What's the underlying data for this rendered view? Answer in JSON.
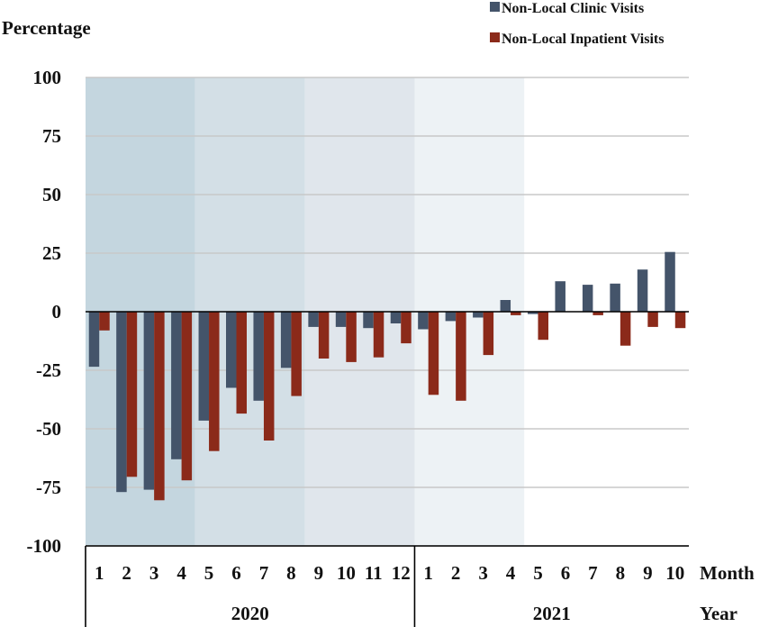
{
  "chart_data": {
    "type": "bar",
    "ylabel": "Percentage",
    "ylim": [
      -100,
      100
    ],
    "yticks": [
      "100",
      "75",
      "50",
      "25",
      "0",
      "-25",
      "-50",
      "-75",
      "-100"
    ],
    "x_axis_label": "Month",
    "group_axis_label": "Year",
    "categories": [
      "1",
      "2",
      "3",
      "4",
      "5",
      "6",
      "7",
      "8",
      "9",
      "10",
      "11",
      "12",
      "1",
      "2",
      "3",
      "4",
      "5",
      "6",
      "7",
      "8",
      "9",
      "10"
    ],
    "years": [
      {
        "label": "2020",
        "months": 12
      },
      {
        "label": "2021",
        "months": 10
      }
    ],
    "series": [
      {
        "name": "Non-Local Clinic Visits",
        "color": "#44546a",
        "values": [
          -23.5,
          -77,
          -76,
          -63,
          -46.5,
          -32.5,
          -38,
          -24,
          -6.5,
          -6.5,
          -7,
          -5,
          -7.5,
          -4,
          -2.5,
          5,
          -1,
          13,
          11.5,
          12,
          18,
          25.5
        ]
      },
      {
        "name": "Non-Local Inpatient Visits",
        "color": "#8b2a1a",
        "values": [
          -8,
          -70.5,
          -80.5,
          -72,
          -59.5,
          -43.5,
          -55,
          -36,
          -20,
          -21.5,
          -19.5,
          -13.5,
          -35.5,
          -38,
          -18.5,
          -1.5,
          -12,
          0,
          -1.5,
          -14.5,
          -6.5,
          -7
        ]
      }
    ],
    "background_bands": [
      {
        "months": 4,
        "color": "#c4d6df"
      },
      {
        "months": 4,
        "color": "#d3dfe6"
      },
      {
        "months": 4,
        "color": "#e0e6ec"
      },
      {
        "months": 4,
        "color": "#edf2f5"
      },
      {
        "months": 6,
        "color": "#ffffff"
      }
    ],
    "grid": true,
    "legend_position": "top-right"
  }
}
